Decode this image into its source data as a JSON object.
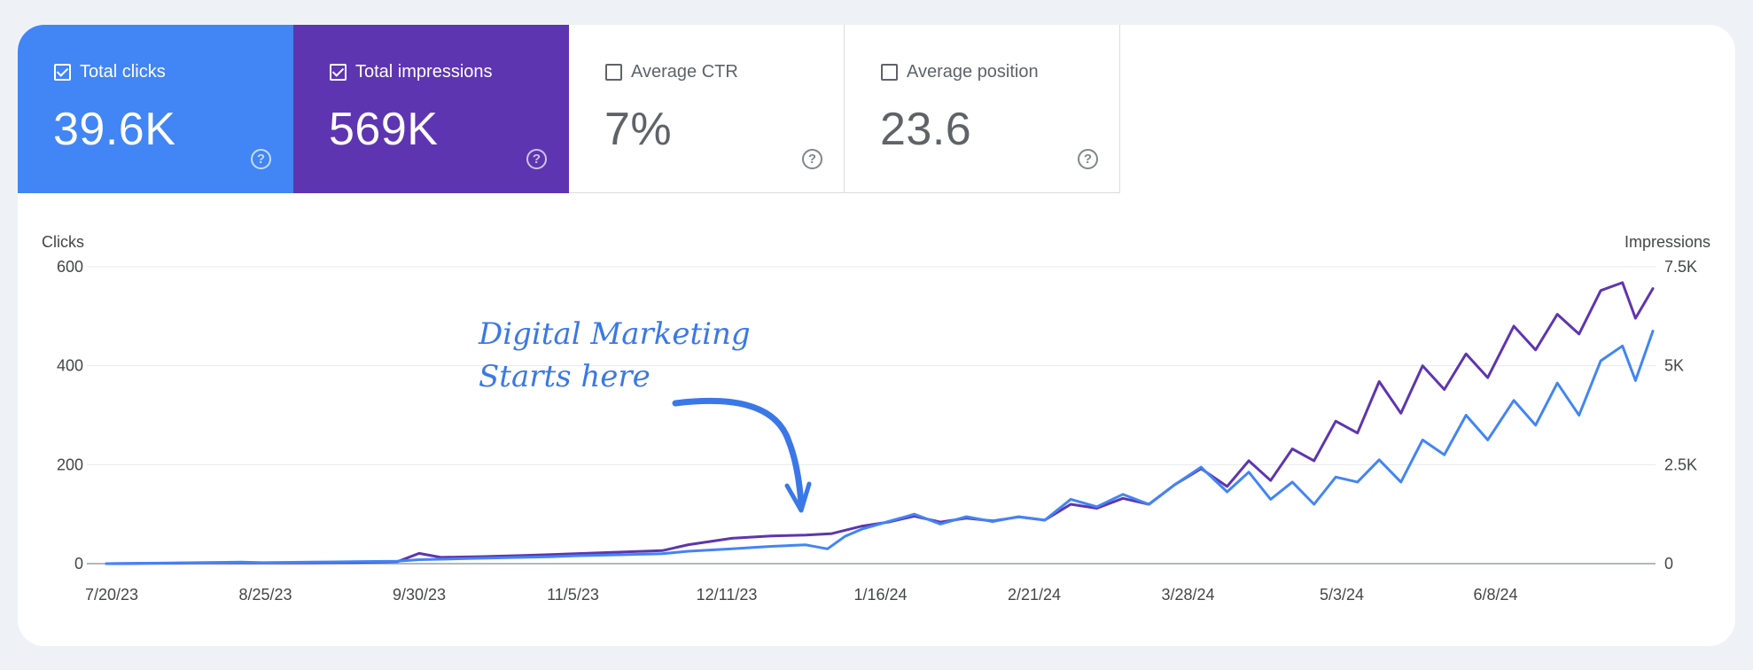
{
  "metrics": [
    {
      "label": "Total clicks",
      "value": "39.6K",
      "checked": true,
      "color": "#4285f4"
    },
    {
      "label": "Total impressions",
      "value": "569K",
      "checked": true,
      "color": "#5e35b1"
    },
    {
      "label": "Average CTR",
      "value": "7%",
      "checked": false,
      "color": "#ffffff"
    },
    {
      "label": "Average position",
      "value": "23.6",
      "checked": false,
      "color": "#ffffff"
    }
  ],
  "help_symbol": "?",
  "annotation": {
    "line1": "Digital Marketing",
    "line2": "Starts here"
  },
  "chart_data": {
    "type": "line",
    "y_left_label": "Clicks",
    "y_right_label": "Impressions",
    "y_left_ticks": [
      "0",
      "200",
      "400",
      "600"
    ],
    "y_right_ticks": [
      "0",
      "2.5K",
      "5K",
      "7.5K"
    ],
    "y_left_range": [
      0,
      600
    ],
    "y_right_range": [
      0,
      7500
    ],
    "x_tick_labels": [
      "7/20/23",
      "8/25/23",
      "9/30/23",
      "11/5/23",
      "12/11/23",
      "1/16/24",
      "2/21/24",
      "3/28/24",
      "5/3/24",
      "6/8/24"
    ],
    "x_start": "2023-07-20",
    "x_end": "2024-07-10",
    "grid": true,
    "series": [
      {
        "name": "Total clicks",
        "axis": "left",
        "color": "#4285f4",
        "points": [
          [
            "2023-07-20",
            0
          ],
          [
            "2023-08-01",
            1
          ],
          [
            "2023-08-10",
            2
          ],
          [
            "2023-08-20",
            3
          ],
          [
            "2023-08-25",
            2
          ],
          [
            "2023-09-05",
            3
          ],
          [
            "2023-09-15",
            4
          ],
          [
            "2023-09-25",
            5
          ],
          [
            "2023-09-30",
            8
          ],
          [
            "2023-10-10",
            10
          ],
          [
            "2023-10-20",
            12
          ],
          [
            "2023-10-30",
            14
          ],
          [
            "2023-11-05",
            16
          ],
          [
            "2023-11-15",
            18
          ],
          [
            "2023-11-25",
            20
          ],
          [
            "2023-12-01",
            25
          ],
          [
            "2023-12-11",
            30
          ],
          [
            "2023-12-20",
            35
          ],
          [
            "2023-12-28",
            38
          ],
          [
            "2024-01-02",
            30
          ],
          [
            "2024-01-06",
            55
          ],
          [
            "2024-01-10",
            70
          ],
          [
            "2024-01-16",
            85
          ],
          [
            "2024-01-22",
            100
          ],
          [
            "2024-01-28",
            80
          ],
          [
            "2024-02-03",
            95
          ],
          [
            "2024-02-09",
            85
          ],
          [
            "2024-02-15",
            95
          ],
          [
            "2024-02-21",
            88
          ],
          [
            "2024-02-27",
            130
          ],
          [
            "2024-03-04",
            115
          ],
          [
            "2024-03-10",
            140
          ],
          [
            "2024-03-16",
            120
          ],
          [
            "2024-03-22",
            160
          ],
          [
            "2024-03-28",
            195
          ],
          [
            "2024-04-03",
            145
          ],
          [
            "2024-04-08",
            185
          ],
          [
            "2024-04-13",
            130
          ],
          [
            "2024-04-18",
            165
          ],
          [
            "2024-04-23",
            120
          ],
          [
            "2024-04-28",
            175
          ],
          [
            "2024-05-03",
            165
          ],
          [
            "2024-05-08",
            210
          ],
          [
            "2024-05-13",
            165
          ],
          [
            "2024-05-18",
            250
          ],
          [
            "2024-05-23",
            220
          ],
          [
            "2024-05-28",
            300
          ],
          [
            "2024-06-02",
            250
          ],
          [
            "2024-06-08",
            330
          ],
          [
            "2024-06-13",
            280
          ],
          [
            "2024-06-18",
            365
          ],
          [
            "2024-06-23",
            300
          ],
          [
            "2024-06-28",
            410
          ],
          [
            "2024-07-03",
            440
          ],
          [
            "2024-07-06",
            370
          ],
          [
            "2024-07-10",
            470
          ]
        ]
      },
      {
        "name": "Total impressions",
        "axis": "right",
        "color": "#5e35b1",
        "points": [
          [
            "2023-07-20",
            0
          ],
          [
            "2023-08-01",
            10
          ],
          [
            "2023-08-10",
            15
          ],
          [
            "2023-08-20",
            20
          ],
          [
            "2023-08-25",
            15
          ],
          [
            "2023-09-05",
            20
          ],
          [
            "2023-09-15",
            30
          ],
          [
            "2023-09-25",
            50
          ],
          [
            "2023-09-30",
            260
          ],
          [
            "2023-10-05",
            160
          ],
          [
            "2023-10-15",
            180
          ],
          [
            "2023-10-25",
            210
          ],
          [
            "2023-11-05",
            250
          ],
          [
            "2023-11-15",
            290
          ],
          [
            "2023-11-25",
            330
          ],
          [
            "2023-12-01",
            480
          ],
          [
            "2023-12-11",
            640
          ],
          [
            "2023-12-20",
            700
          ],
          [
            "2023-12-28",
            720
          ],
          [
            "2024-01-03",
            760
          ],
          [
            "2024-01-10",
            950
          ],
          [
            "2024-01-16",
            1050
          ],
          [
            "2024-01-22",
            1200
          ],
          [
            "2024-01-28",
            1050
          ],
          [
            "2024-02-03",
            1150
          ],
          [
            "2024-02-09",
            1080
          ],
          [
            "2024-02-15",
            1180
          ],
          [
            "2024-02-21",
            1100
          ],
          [
            "2024-02-27",
            1500
          ],
          [
            "2024-03-04",
            1400
          ],
          [
            "2024-03-10",
            1650
          ],
          [
            "2024-03-16",
            1500
          ],
          [
            "2024-03-22",
            2000
          ],
          [
            "2024-03-28",
            2400
          ],
          [
            "2024-04-03",
            1950
          ],
          [
            "2024-04-08",
            2600
          ],
          [
            "2024-04-13",
            2100
          ],
          [
            "2024-04-18",
            2900
          ],
          [
            "2024-04-23",
            2600
          ],
          [
            "2024-04-28",
            3600
          ],
          [
            "2024-05-03",
            3300
          ],
          [
            "2024-05-08",
            4600
          ],
          [
            "2024-05-13",
            3800
          ],
          [
            "2024-05-18",
            5000
          ],
          [
            "2024-05-23",
            4400
          ],
          [
            "2024-05-28",
            5300
          ],
          [
            "2024-06-02",
            4700
          ],
          [
            "2024-06-08",
            6000
          ],
          [
            "2024-06-13",
            5400
          ],
          [
            "2024-06-18",
            6300
          ],
          [
            "2024-06-23",
            5800
          ],
          [
            "2024-06-28",
            6900
          ],
          [
            "2024-07-03",
            7100
          ],
          [
            "2024-07-06",
            6200
          ],
          [
            "2024-07-10",
            6950
          ]
        ]
      }
    ]
  }
}
